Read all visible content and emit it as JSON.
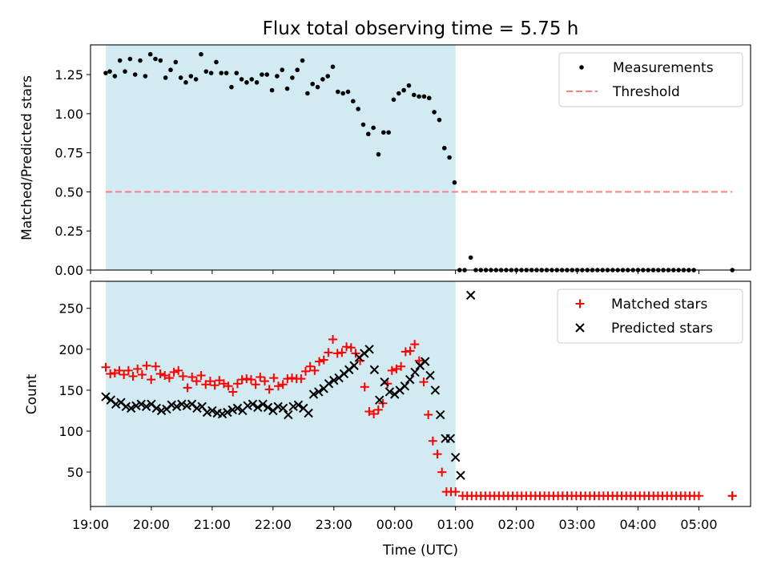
{
  "chart_data": [
    {
      "type": "scatter",
      "title": "Flux total observing time = 5.75 h",
      "xlabel": "",
      "ylabel": "Matched/Predicted stars",
      "xlim": [
        "19:00",
        "05:51"
      ],
      "ylim": [
        0,
        1.44
      ],
      "yticks": [
        0.0,
        0.25,
        0.5,
        0.75,
        1.0,
        1.25
      ],
      "ytick_labels": [
        "0.00",
        "0.25",
        "0.50",
        "0.75",
        "1.00",
        "1.25"
      ],
      "shaded_region": {
        "start": "19:15",
        "end": "01:00",
        "color": "#add8e6"
      },
      "series": [
        {
          "name": "Measurements",
          "marker": "dot",
          "color": "#000000",
          "points": [
            [
              "19:15",
              1.26
            ],
            [
              "19:19",
              1.27
            ],
            [
              "19:24",
              1.24
            ],
            [
              "19:29",
              1.34
            ],
            [
              "19:34",
              1.27
            ],
            [
              "19:39",
              1.35
            ],
            [
              "19:44",
              1.25
            ],
            [
              "19:49",
              1.34
            ],
            [
              "19:54",
              1.24
            ],
            [
              "19:59",
              1.38
            ],
            [
              "20:04",
              1.35
            ],
            [
              "20:09",
              1.34
            ],
            [
              "20:14",
              1.23
            ],
            [
              "20:19",
              1.28
            ],
            [
              "20:24",
              1.33
            ],
            [
              "20:29",
              1.23
            ],
            [
              "20:34",
              1.2
            ],
            [
              "20:39",
              1.24
            ],
            [
              "20:44",
              1.22
            ],
            [
              "20:49",
              1.38
            ],
            [
              "20:54",
              1.27
            ],
            [
              "20:59",
              1.26
            ],
            [
              "21:04",
              1.33
            ],
            [
              "21:09",
              1.26
            ],
            [
              "21:14",
              1.26
            ],
            [
              "21:19",
              1.17
            ],
            [
              "21:24",
              1.26
            ],
            [
              "21:29",
              1.22
            ],
            [
              "21:34",
              1.2
            ],
            [
              "21:39",
              1.22
            ],
            [
              "21:44",
              1.2
            ],
            [
              "21:49",
              1.25
            ],
            [
              "21:54",
              1.25
            ],
            [
              "21:59",
              1.15
            ],
            [
              "22:04",
              1.24
            ],
            [
              "22:09",
              1.28
            ],
            [
              "22:14",
              1.16
            ],
            [
              "22:19",
              1.23
            ],
            [
              "22:24",
              1.28
            ],
            [
              "22:29",
              1.34
            ],
            [
              "22:34",
              1.13
            ],
            [
              "22:39",
              1.19
            ],
            [
              "22:44",
              1.17
            ],
            [
              "22:49",
              1.22
            ],
            [
              "22:54",
              1.24
            ],
            [
              "22:59",
              1.3
            ],
            [
              "23:04",
              1.14
            ],
            [
              "23:09",
              1.13
            ],
            [
              "23:14",
              1.14
            ],
            [
              "23:19",
              1.08
            ],
            [
              "23:24",
              1.03
            ],
            [
              "23:29",
              0.93
            ],
            [
              "23:34",
              0.87
            ],
            [
              "23:39",
              0.91
            ],
            [
              "23:44",
              0.74
            ],
            [
              "23:49",
              0.88
            ],
            [
              "23:54",
              0.88
            ],
            [
              "23:59",
              1.09
            ],
            [
              "00:04",
              1.13
            ],
            [
              "00:09",
              1.15
            ],
            [
              "00:14",
              1.18
            ],
            [
              "00:19",
              1.12
            ],
            [
              "00:24",
              1.11
            ],
            [
              "00:29",
              1.11
            ],
            [
              "00:34",
              1.1
            ],
            [
              "00:39",
              1.01
            ],
            [
              "00:44",
              0.96
            ],
            [
              "00:49",
              0.78
            ],
            [
              "00:54",
              0.72
            ],
            [
              "00:59",
              0.56
            ],
            [
              "01:04",
              0.0
            ],
            [
              "01:09",
              0.0
            ],
            [
              "01:15",
              0.08
            ],
            [
              "01:20",
              0.0
            ],
            [
              "01:25",
              0.0
            ],
            [
              "01:30",
              0.0
            ],
            [
              "01:35",
              0.0
            ],
            [
              "01:40",
              0.0
            ],
            [
              "01:45",
              0.0
            ],
            [
              "01:50",
              0.0
            ],
            [
              "01:55",
              0.0
            ],
            [
              "02:00",
              0.0
            ],
            [
              "02:05",
              0.0
            ],
            [
              "02:10",
              0.0
            ],
            [
              "02:15",
              0.0
            ],
            [
              "02:20",
              0.0
            ],
            [
              "02:25",
              0.0
            ],
            [
              "02:30",
              0.0
            ],
            [
              "02:35",
              0.0
            ],
            [
              "02:40",
              0.0
            ],
            [
              "02:45",
              0.0
            ],
            [
              "02:50",
              0.0
            ],
            [
              "02:55",
              0.0
            ],
            [
              "03:00",
              0.0
            ],
            [
              "03:05",
              0.0
            ],
            [
              "03:10",
              0.0
            ],
            [
              "03:15",
              0.0
            ],
            [
              "03:20",
              0.0
            ],
            [
              "03:25",
              0.0
            ],
            [
              "03:30",
              0.0
            ],
            [
              "03:35",
              0.0
            ],
            [
              "03:40",
              0.0
            ],
            [
              "03:45",
              0.0
            ],
            [
              "03:50",
              0.0
            ],
            [
              "03:55",
              0.0
            ],
            [
              "04:00",
              0.0
            ],
            [
              "04:05",
              0.0
            ],
            [
              "04:10",
              0.0
            ],
            [
              "04:15",
              0.0
            ],
            [
              "04:20",
              0.0
            ],
            [
              "04:25",
              0.0
            ],
            [
              "04:30",
              0.0
            ],
            [
              "04:35",
              0.0
            ],
            [
              "04:40",
              0.0
            ],
            [
              "04:45",
              0.0
            ],
            [
              "04:50",
              0.0
            ],
            [
              "04:55",
              0.0
            ],
            [
              "05:33",
              0.0
            ]
          ]
        },
        {
          "name": "Threshold",
          "marker": "dashed-line",
          "color": "#ff7f7f",
          "points": [
            [
              "19:15",
              0.5
            ],
            [
              "05:33",
              0.5
            ]
          ]
        }
      ],
      "legend": {
        "position": "top-right"
      }
    },
    {
      "type": "scatter",
      "title": "",
      "xlabel": "Time (UTC)",
      "ylabel": "Count",
      "xlim": [
        "19:00",
        "05:51"
      ],
      "ylim": [
        8,
        283
      ],
      "yticks": [
        50,
        100,
        150,
        200,
        250
      ],
      "ytick_labels": [
        "50",
        "100",
        "150",
        "200",
        "250"
      ],
      "xticks": [
        "19:00",
        "20:00",
        "21:00",
        "22:00",
        "23:00",
        "00:00",
        "01:00",
        "02:00",
        "03:00",
        "04:00",
        "05:00"
      ],
      "shaded_region": {
        "start": "19:15",
        "end": "01:00",
        "color": "#add8e6"
      },
      "series": [
        {
          "name": "Matched stars",
          "marker": "plus",
          "color": "#ff0000",
          "values": [
            178,
            170,
            171,
            174,
            169,
            174,
            167,
            176,
            169,
            180,
            163,
            179,
            170,
            168,
            165,
            172,
            174,
            167,
            153,
            166,
            161,
            168,
            157,
            161,
            156,
            162,
            158,
            155,
            148,
            158,
            163,
            164,
            163,
            157,
            166,
            161,
            151,
            165,
            155,
            157,
            164,
            165,
            164,
            164,
            173,
            179,
            174,
            185,
            187,
            196,
            212,
            195,
            196,
            203,
            202,
            195,
            186,
            154,
            124,
            121,
            126,
            134,
            158,
            174,
            176,
            179,
            197,
            198,
            206,
            186,
            160,
            120,
            88,
            72,
            50,
            26,
            26,
            26,
            21,
            21,
            21,
            21,
            21,
            21,
            21,
            21,
            21,
            21,
            21,
            21,
            21,
            21,
            21,
            21,
            21,
            21,
            21,
            21,
            21,
            21,
            21,
            21,
            21,
            21,
            21,
            21,
            21,
            21,
            21,
            21,
            21,
            21,
            21,
            21,
            21,
            21,
            21,
            21,
            21,
            21,
            21,
            21,
            21,
            21,
            21,
            21,
            21,
            21,
            21,
            21,
            21,
            21,
            21
          ]
        },
        {
          "name": "Predicted stars",
          "marker": "x",
          "color": "#000000",
          "points": [
            [
              "19:15",
              142
            ],
            [
              "19:20",
              138
            ],
            [
              "19:25",
              133
            ],
            [
              "19:30",
              135
            ],
            [
              "19:35",
              130
            ],
            [
              "19:40",
              128
            ],
            [
              "19:45",
              131
            ],
            [
              "19:50",
              133
            ],
            [
              "19:55",
              130
            ],
            [
              "20:00",
              133
            ],
            [
              "20:05",
              128
            ],
            [
              "20:10",
              125
            ],
            [
              "20:15",
              127
            ],
            [
              "20:20",
              132
            ],
            [
              "20:25",
              130
            ],
            [
              "20:30",
              133
            ],
            [
              "20:35",
              131
            ],
            [
              "20:40",
              133
            ],
            [
              "20:45",
              128
            ],
            [
              "20:50",
              130
            ],
            [
              "20:55",
              123
            ],
            [
              "21:00",
              125
            ],
            [
              "21:05",
              122
            ],
            [
              "21:10",
              121
            ],
            [
              "21:15",
              123
            ],
            [
              "21:20",
              126
            ],
            [
              "21:25",
              128
            ],
            [
              "21:30",
              125
            ],
            [
              "21:35",
              131
            ],
            [
              "21:40",
              133
            ],
            [
              "21:45",
              129
            ],
            [
              "21:50",
              133
            ],
            [
              "21:55",
              129
            ],
            [
              "22:00",
              125
            ],
            [
              "22:05",
              130
            ],
            [
              "22:10",
              128
            ],
            [
              "22:15",
              120
            ],
            [
              "22:20",
              130
            ],
            [
              "22:25",
              132
            ],
            [
              "22:30",
              128
            ],
            [
              "22:35",
              122
            ],
            [
              "22:40",
              145
            ],
            [
              "22:45",
              148
            ],
            [
              "22:50",
              152
            ],
            [
              "22:55",
              158
            ],
            [
              "23:00",
              162
            ],
            [
              "23:05",
              165
            ],
            [
              "23:10",
              170
            ],
            [
              "23:15",
              175
            ],
            [
              "23:20",
              180
            ],
            [
              "23:25",
              190
            ],
            [
              "23:30",
              195
            ],
            [
              "23:35",
              200
            ],
            [
              "23:40",
              175
            ],
            [
              "23:45",
              138
            ],
            [
              "23:50",
              160
            ],
            [
              "23:55",
              148
            ],
            [
              "00:00",
              145
            ],
            [
              "00:05",
              150
            ],
            [
              "00:10",
              155
            ],
            [
              "00:15",
              163
            ],
            [
              "00:20",
              172
            ],
            [
              "00:25",
              180
            ],
            [
              "00:30",
              185
            ],
            [
              "00:35",
              168
            ],
            [
              "00:40",
              150
            ],
            [
              "00:45",
              120
            ],
            [
              "00:50",
              91
            ],
            [
              "00:55",
              91
            ],
            [
              "01:00",
              68
            ],
            [
              "01:05",
              46
            ],
            [
              "01:15",
              266
            ]
          ]
        }
      ],
      "legend": {
        "position": "top-right"
      }
    }
  ]
}
